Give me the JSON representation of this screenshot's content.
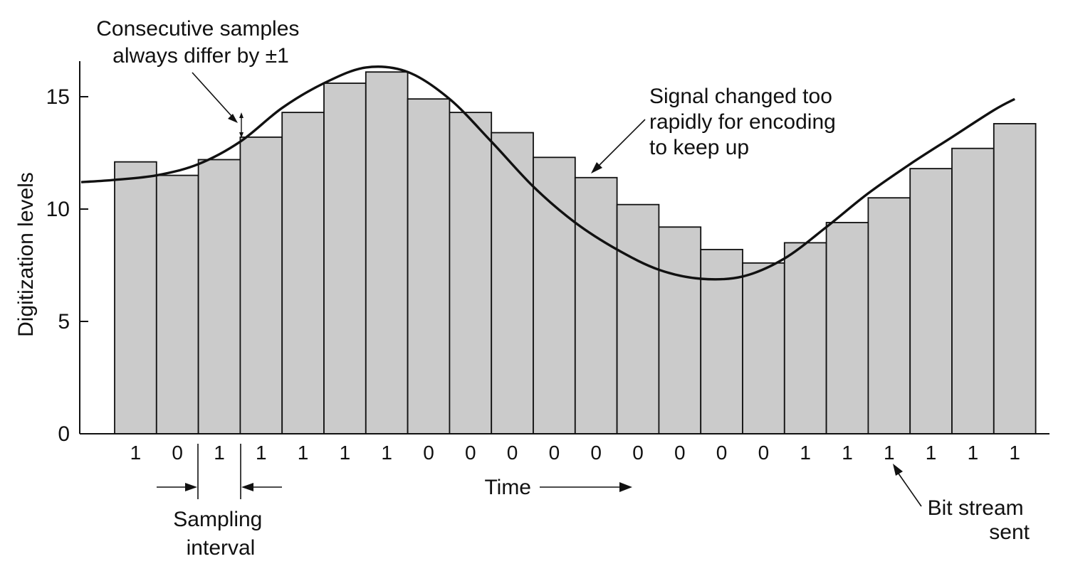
{
  "chart_data": {
    "type": "bar",
    "ylabel": "Digitization levels",
    "xlabel": "Time",
    "ylim": [
      0,
      17
    ],
    "y_ticks": [
      0,
      5,
      10,
      15
    ],
    "grid": false,
    "levels": [
      12.1,
      11.5,
      12.2,
      13.2,
      14.3,
      15.6,
      16.1,
      14.9,
      14.3,
      13.4,
      12.3,
      11.4,
      10.2,
      9.2,
      8.2,
      7.6,
      8.5,
      9.4,
      10.5,
      11.8,
      12.7,
      13.8
    ],
    "bits": [
      "1",
      "0",
      "1",
      "1",
      "1",
      "1",
      "1",
      "0",
      "0",
      "0",
      "0",
      "0",
      "0",
      "0",
      "0",
      "0",
      "1",
      "1",
      "1",
      "1",
      "1",
      "1"
    ],
    "signal": {
      "x": [
        -0.8,
        0,
        1,
        2,
        3,
        4,
        5,
        6,
        7,
        8,
        9,
        10,
        11,
        12,
        13,
        14,
        15,
        16,
        17,
        18,
        19,
        20,
        21,
        21.5
      ],
      "y": [
        11.2,
        11.3,
        11.5,
        12.0,
        13.0,
        14.5,
        15.6,
        16.3,
        16.1,
        14.9,
        13.0,
        11.0,
        9.4,
        8.2,
        7.3,
        6.9,
        7.0,
        7.8,
        9.2,
        10.7,
        12.0,
        13.2,
        14.4,
        14.9
      ]
    },
    "annotations": {
      "consecutive": [
        "Consecutive samples",
        "always differ by ±1"
      ],
      "too_rapid": [
        "Signal changed too",
        "rapidly for encoding",
        "to keep up"
      ],
      "bitstream": [
        "Bit stream",
        "sent"
      ],
      "sampling": [
        "Sampling",
        "interval"
      ]
    }
  }
}
